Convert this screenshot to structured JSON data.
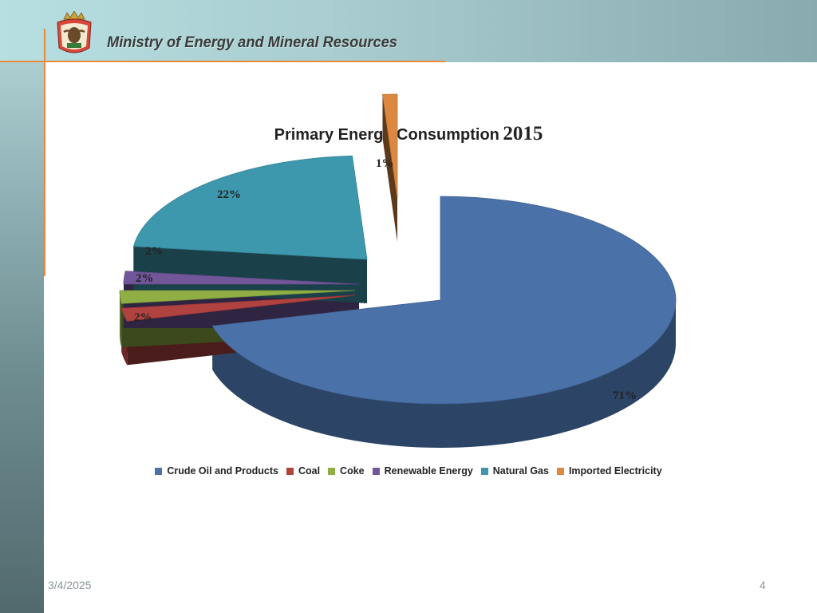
{
  "header": {
    "ministry_title": "Ministry of Energy and Mineral Resources",
    "logo_icon": "jordan-coat-of-arms-icon"
  },
  "chart_data": {
    "type": "pie",
    "title": "Primary Energy Consumption",
    "title_year": "2015",
    "labels": [
      "Crude Oil and Products",
      "Coal",
      "Coke",
      "Renewable Energy",
      "Natural Gas",
      "Imported Electricity"
    ],
    "values": [
      71,
      2,
      2,
      2,
      22,
      1
    ],
    "value_labels": [
      "71%",
      "2%",
      "2%",
      "2%",
      "22%",
      "1%"
    ],
    "colors": [
      "#4a72a9",
      "#b04240",
      "#8fae44",
      "#71569a",
      "#3d98ad",
      "#dd8840"
    ],
    "legend_position": "bottom",
    "style": "3d-exploded"
  },
  "footer": {
    "date": "3/4/2025",
    "page_number": "4"
  }
}
